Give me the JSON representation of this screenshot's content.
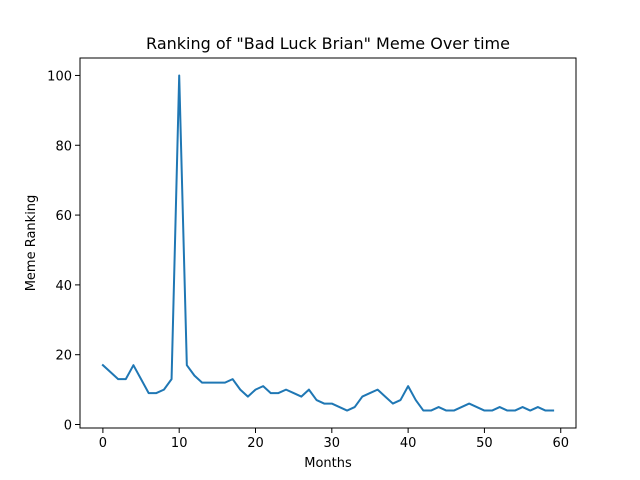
{
  "chart_data": {
    "type": "line",
    "title": "Ranking of \"Bad Luck Brian\" Meme Over time",
    "xlabel": "Months",
    "ylabel": "Meme Ranking",
    "xlim": [
      -3,
      62
    ],
    "ylim": [
      -1,
      105
    ],
    "xticks": [
      0,
      10,
      20,
      30,
      40,
      50,
      60
    ],
    "yticks": [
      0,
      20,
      40,
      60,
      80,
      100
    ],
    "grid": false,
    "series": [
      {
        "color": "#1f77b4",
        "x": [
          0,
          1,
          2,
          3,
          4,
          5,
          6,
          7,
          8,
          9,
          10,
          11,
          12,
          13,
          14,
          15,
          16,
          17,
          18,
          19,
          20,
          21,
          22,
          23,
          24,
          25,
          26,
          27,
          28,
          29,
          30,
          31,
          32,
          33,
          34,
          35,
          36,
          37,
          38,
          39,
          40,
          41,
          42,
          43,
          44,
          45,
          46,
          47,
          48,
          49,
          50,
          51,
          52,
          53,
          54,
          55,
          56,
          57,
          58,
          59
        ],
        "values": [
          17,
          15,
          13,
          13,
          17,
          13,
          9,
          9,
          10,
          13,
          100,
          17,
          14,
          12,
          12,
          12,
          12,
          13,
          10,
          8,
          10,
          11,
          9,
          9,
          10,
          9,
          8,
          10,
          7,
          6,
          6,
          5,
          4,
          5,
          8,
          9,
          10,
          8,
          6,
          7,
          11,
          7,
          4,
          4,
          5,
          4,
          4,
          5,
          6,
          5,
          4,
          4,
          5,
          4,
          4,
          5,
          4,
          5,
          4,
          4
        ]
      }
    ]
  }
}
